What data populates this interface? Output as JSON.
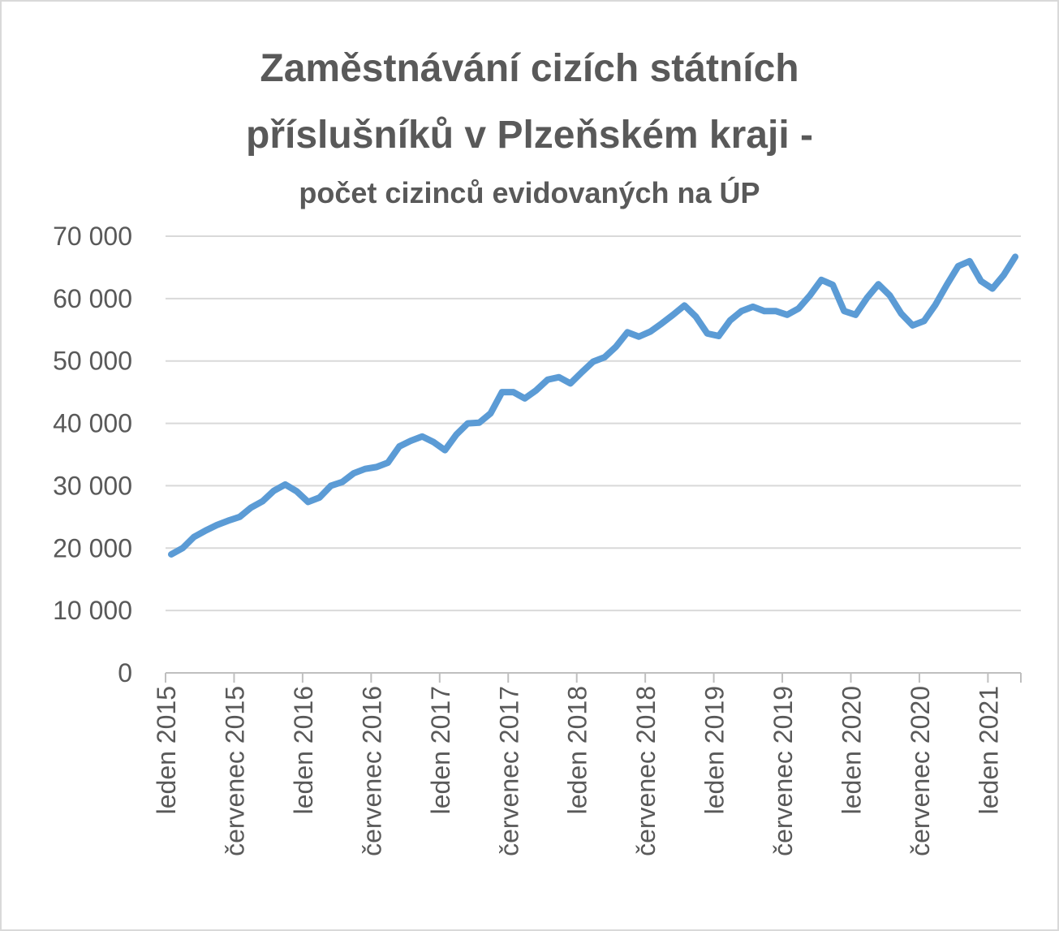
{
  "chart_data": {
    "type": "line",
    "title_lines": [
      "Zaměstnávání cizích státních",
      "příslušníků v Plzeňském kraji -"
    ],
    "subtitle": "počet cizinců evidovaných na ÚP",
    "xlabel": "",
    "ylabel": "",
    "ylim": [
      0,
      70000
    ],
    "yticks": [
      0,
      10000,
      20000,
      30000,
      40000,
      50000,
      60000,
      70000
    ],
    "ytick_labels": [
      "0",
      "10 000",
      "20 000",
      "30 000",
      "40 000",
      "50 000",
      "60 000",
      "70 000"
    ],
    "xtick_labels": [
      "leden 2015",
      "červenec 2015",
      "leden 2016",
      "červenec 2016",
      "leden 2017",
      "červenec 2017",
      "leden 2018",
      "červenec 2018",
      "leden 2019",
      "červenec 2019",
      "leden 2020",
      "červenec 2020",
      "leden 2021"
    ],
    "xtick_every_months": 6,
    "grid": true,
    "legend": "none",
    "color": "#5b9bd5",
    "series": [
      {
        "values": [
          19000,
          20000,
          21800,
          22800,
          23700,
          24400,
          25000,
          26500,
          27500,
          29200,
          30200,
          29100,
          27400,
          28100,
          30000,
          30600,
          32000,
          32700,
          33000,
          33700,
          36300,
          37200,
          37900,
          37000,
          35700,
          38200,
          40000,
          40100,
          41600,
          45000,
          45000,
          44000,
          45300,
          47000,
          47400,
          46400,
          48200,
          49900,
          50600,
          52300,
          54600,
          53900,
          54700,
          56000,
          57400,
          58900,
          57100,
          54400,
          54000,
          56500,
          58000,
          58700,
          58000,
          58000,
          57400,
          58400,
          60500,
          63000,
          62200,
          58000,
          57400,
          60100,
          62300,
          60500,
          57600,
          55700,
          56400,
          59000,
          62200,
          65200,
          66000,
          62800,
          61600,
          63800,
          66700
        ]
      }
    ]
  }
}
